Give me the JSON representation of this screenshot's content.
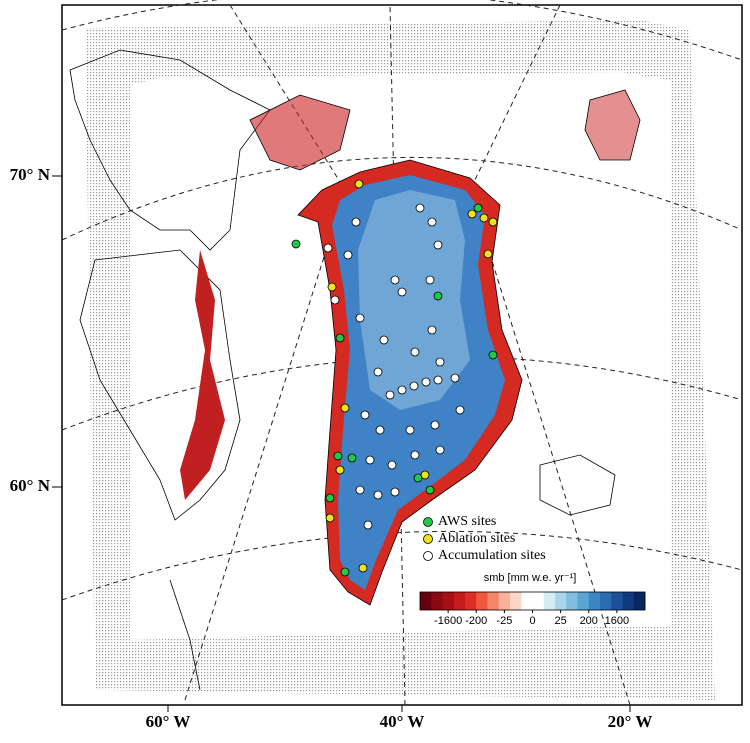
{
  "map": {
    "lat_labels": [
      "70° N",
      "60° N"
    ],
    "lon_labels": [
      "60° W",
      "40° W",
      "20° W"
    ],
    "legend": [
      {
        "label": "AWS sites",
        "color": "#22c84a"
      },
      {
        "label": "Ablation sites",
        "color": "#f2e21a"
      },
      {
        "label": "Accumulation sites",
        "color": "#ffffff"
      }
    ],
    "colorbar": {
      "title": "smb [mm w.e. yr⁻¹]",
      "ticks": [
        -1600,
        -200,
        -25,
        0,
        25,
        200,
        1600
      ],
      "colors": [
        "#67000d",
        "#8b0a12",
        "#a50f15",
        "#c4191d",
        "#de2d26",
        "#ef5a3e",
        "#f5866a",
        "#fbb09a",
        "#fcd5c8",
        "#ffffff",
        "#ffffff",
        "#d4ecf4",
        "#a9d6e9",
        "#7fbfdd",
        "#5aa5d2",
        "#3b87c2",
        "#2a6cb0",
        "#1c519a",
        "#103a7e",
        "#08275f"
      ]
    }
  }
}
